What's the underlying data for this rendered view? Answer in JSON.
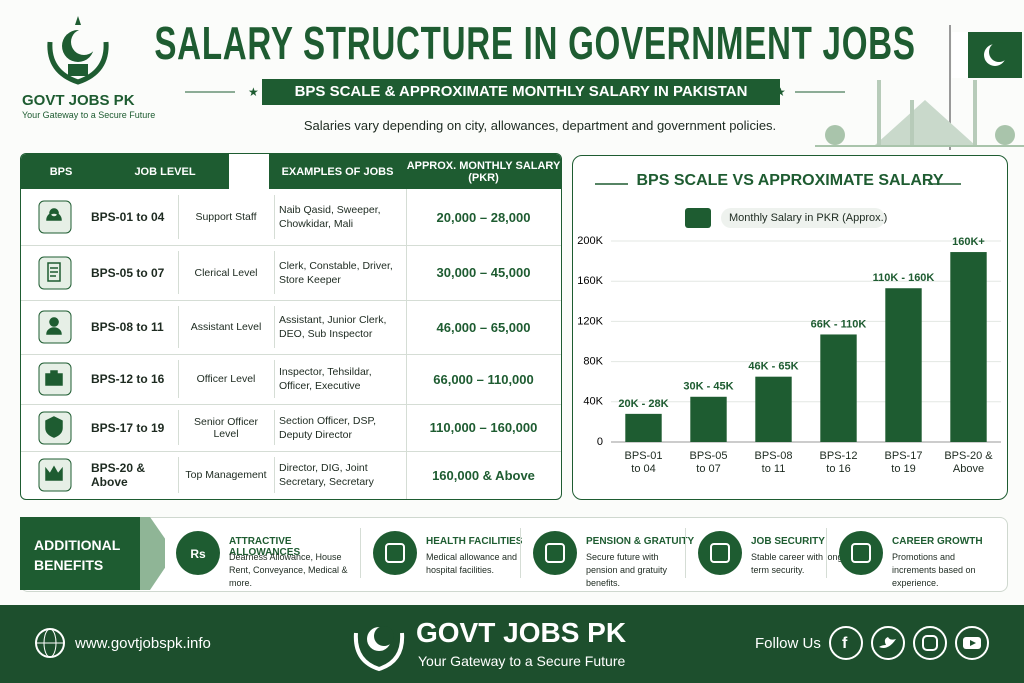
{
  "header": {
    "brand": "GOVT JOBS PK",
    "tagline": "Your Gateway to a Secure Future",
    "title": "SALARY STRUCTURE IN GOVERNMENT JOBS",
    "subtitle": "BPS SCALE & APPROXIMATE MONTHLY SALARY IN PAKISTAN",
    "note": "Salaries vary depending on city, allowances, department and government policies."
  },
  "table": {
    "columns": [
      "BPS",
      "JOB LEVEL",
      "EXAMPLES OF JOBS",
      "APPROX. MONTHLY SALARY (PKR)"
    ],
    "rows": [
      [
        "BPS-01 to 04",
        "Support Staff",
        "Naib Qasid, Sweeper, Chowkidar, Mali",
        "20,000 – 28,000"
      ],
      [
        "BPS-05 to 07",
        "Clerical Level",
        "Clerk, Constable, Driver, Store Keeper",
        "30,000 – 45,000"
      ],
      [
        "BPS-08 to 11",
        "Assistant Level",
        "Assistant, Junior Clerk, DEO, Sub Inspector",
        "46,000 – 65,000"
      ],
      [
        "BPS-12 to 16",
        "Officer Level",
        "Inspector, Tehsildar, Officer, Executive",
        "66,000 – 110,000"
      ],
      [
        "BPS-17 to 19",
        "Senior Officer Level",
        "Section Officer, DSP, Deputy Director",
        "110,000 – 160,000"
      ],
      [
        "BPS-20 & Above",
        "Top Management",
        "Director, DIG, Joint Secretary, Secretary",
        "160,000 & Above"
      ]
    ]
  },
  "chart_data": {
    "type": "bar",
    "title": "BPS SCALE VS APPROXIMATE SALARY",
    "categories": [
      "BPS-01 to 04",
      "BPS-05 to 07",
      "BPS-08 to 11",
      "BPS-12 to 16",
      "BPS-17 to 19",
      "BPS-20 & Above"
    ],
    "series": [
      {
        "name": "Monthly Salary in PKR (Approx.)",
        "color": "#1e5c31",
        "values": [
          28000,
          45000,
          65000,
          107000,
          153000,
          189000
        ],
        "value_labels": [
          "20K - 28K",
          "30K - 45K",
          "46K - 65K",
          "66K - 110K",
          "110K - 160K",
          "160K+"
        ]
      }
    ],
    "ylim": [
      0,
      200000
    ],
    "yticks": [
      0,
      {
        "value": 40000,
        "label": "40K"
      },
      {
        "value": 80000,
        "label": "80K"
      },
      {
        "value": 120000,
        "label": "120K"
      },
      {
        "value": 160000,
        "label": "160K"
      },
      {
        "value": 200000,
        "label": "200K"
      }
    ],
    "grid": true
  },
  "benefits": {
    "heading": "ADDITIONAL BENEFITS",
    "items": [
      {
        "icon_label": "Rs",
        "title": "ATTRACTIVE ALLOWANCES",
        "text": "Dearness Allowance, House Rent, Conveyance, Medical & more."
      },
      {
        "title": "HEALTH FACILITIES",
        "text": "Medical allowance and hospital facilities."
      },
      {
        "title": "PENSION & GRATUITY",
        "text": "Secure future with pension and gratuity benefits."
      },
      {
        "title": "JOB SECURITY",
        "text": "Stable career with long-term security."
      },
      {
        "title": "CAREER GROWTH",
        "text": "Promotions and increments based on experience."
      }
    ]
  },
  "footer": {
    "website": "www.govtjobspk.info",
    "brand": "GOVT JOBS PK",
    "tagline": "Your Gateway to a Secure Future",
    "follow": "Follow Us"
  }
}
